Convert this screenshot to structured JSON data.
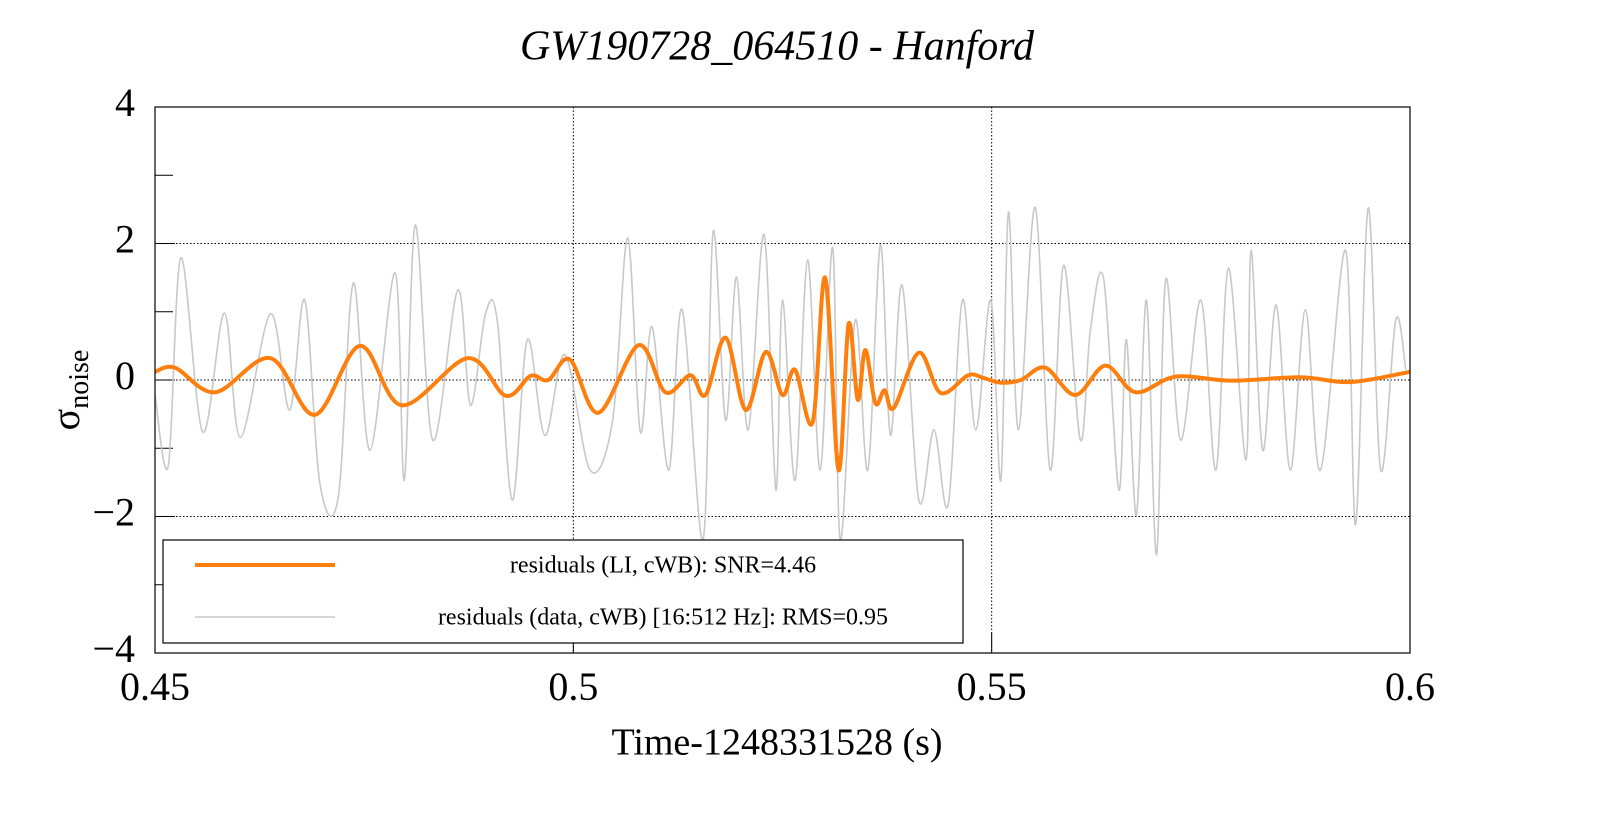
{
  "chart_data": {
    "type": "line",
    "title": "GW190728_064510 - Hanford",
    "xlabel": "Time-1248331528 (s)",
    "ylabel": {
      "main": "σ",
      "sub": "noise"
    },
    "xlim": [
      0.45,
      0.6
    ],
    "xticks": [
      0.45,
      0.5,
      0.55,
      0.6
    ],
    "ylim": [
      -4,
      4
    ],
    "yticks": [
      {
        "value": -4,
        "label": "−4"
      },
      {
        "value": -2,
        "label": "−2"
      },
      0,
      2,
      4
    ],
    "yminorticks": [
      -3,
      -1,
      1,
      3
    ],
    "grid": true,
    "legend": "lower left",
    "series": [
      {
        "name": "residuals (LI, cWB): SNR=4.46",
        "color": "#ff7f0e",
        "width": 4,
        "x": [
          0.45,
          0.4524,
          0.4572,
          0.4638,
          0.4691,
          0.4745,
          0.4795,
          0.4874,
          0.4919,
          0.4949,
          0.497,
          0.4996,
          0.503,
          0.5078,
          0.511,
          0.514,
          0.5158,
          0.5182,
          0.5206,
          0.523,
          0.525,
          0.5265,
          0.5286,
          0.5301,
          0.5317,
          0.5329,
          0.534,
          0.5349,
          0.5361,
          0.5372,
          0.5383,
          0.5413,
          0.5439,
          0.5472,
          0.549,
          0.5511,
          0.5535,
          0.5564,
          0.56,
          0.5636,
          0.5672,
          0.572,
          0.5786,
          0.5869,
          0.5929,
          0.6
        ],
        "values": [
          0.12,
          0.18,
          -0.18,
          0.32,
          -0.51,
          0.5,
          -0.37,
          0.32,
          -0.23,
          0.06,
          0.0,
          0.3,
          -0.48,
          0.51,
          -0.18,
          0.07,
          -0.22,
          0.62,
          -0.44,
          0.41,
          -0.22,
          0.15,
          -0.62,
          1.5,
          -1.32,
          0.82,
          -0.29,
          0.44,
          -0.34,
          -0.15,
          -0.41,
          0.4,
          -0.19,
          0.07,
          0.03,
          -0.04,
          0.0,
          0.18,
          -0.22,
          0.21,
          -0.18,
          0.05,
          -0.01,
          0.04,
          -0.03,
          0.12
        ]
      },
      {
        "name": "residuals (data, cWB) [16:512 Hz]: RMS=0.95",
        "color": "#c8c8c8",
        "width": 1.6,
        "x": [
          0.45,
          0.4516,
          0.4531,
          0.4557,
          0.4583,
          0.4602,
          0.4638,
          0.4661,
          0.4679,
          0.4697,
          0.4719,
          0.4737,
          0.4757,
          0.4787,
          0.4798,
          0.4811,
          0.4832,
          0.4862,
          0.4877,
          0.4895,
          0.4909,
          0.4927,
          0.4945,
          0.4966,
          0.499,
          0.502,
          0.5047,
          0.5065,
          0.508,
          0.5094,
          0.5114,
          0.513,
          0.5155,
          0.5167,
          0.5182,
          0.5195,
          0.5209,
          0.5228,
          0.5242,
          0.525,
          0.5265,
          0.528,
          0.5295,
          0.531,
          0.5319,
          0.5337,
          0.5352,
          0.5367,
          0.5379,
          0.5393,
          0.5413,
          0.5431,
          0.5448,
          0.5465,
          0.5481,
          0.5499,
          0.5511,
          0.552,
          0.5532,
          0.5552,
          0.557,
          0.5586,
          0.5606,
          0.5618,
          0.5634,
          0.5652,
          0.5661,
          0.5673,
          0.5685,
          0.5697,
          0.5708,
          0.5726,
          0.575,
          0.5768,
          0.5783,
          0.5804,
          0.581,
          0.5824,
          0.584,
          0.5857,
          0.5875,
          0.5893,
          0.5923,
          0.5935,
          0.595,
          0.5965,
          0.5983,
          0.5995
        ],
        "values": [
          -0.22,
          -1.25,
          1.79,
          -0.76,
          0.98,
          -0.84,
          0.97,
          -0.44,
          1.17,
          -1.51,
          -1.72,
          1.42,
          -1.03,
          1.57,
          -1.47,
          2.27,
          -0.88,
          1.32,
          -0.37,
          0.97,
          0.88,
          -1.76,
          0.59,
          -0.81,
          0.37,
          -1.32,
          -0.59,
          2.08,
          -0.76,
          0.78,
          -1.32,
          1.03,
          -2.34,
          2.17,
          -0.59,
          1.51,
          -0.73,
          2.13,
          -1.61,
          1.17,
          -1.47,
          1.76,
          -1.32,
          1.94,
          -2.34,
          0.88,
          -1.32,
          1.98,
          -0.81,
          1.39,
          -1.76,
          -0.73,
          -1.83,
          1.17,
          -0.73,
          1.17,
          -1.47,
          2.46,
          -0.73,
          2.53,
          -1.32,
          1.68,
          -0.88,
          0.73,
          1.47,
          -1.61,
          0.59,
          -1.98,
          1.17,
          -2.56,
          1.47,
          -0.88,
          1.17,
          -1.32,
          1.64,
          -1.17,
          1.9,
          -1.03,
          1.1,
          -1.32,
          1.03,
          -1.32,
          1.9,
          -2.12,
          2.52,
          -1.32,
          0.88,
          0.15
        ]
      }
    ]
  }
}
